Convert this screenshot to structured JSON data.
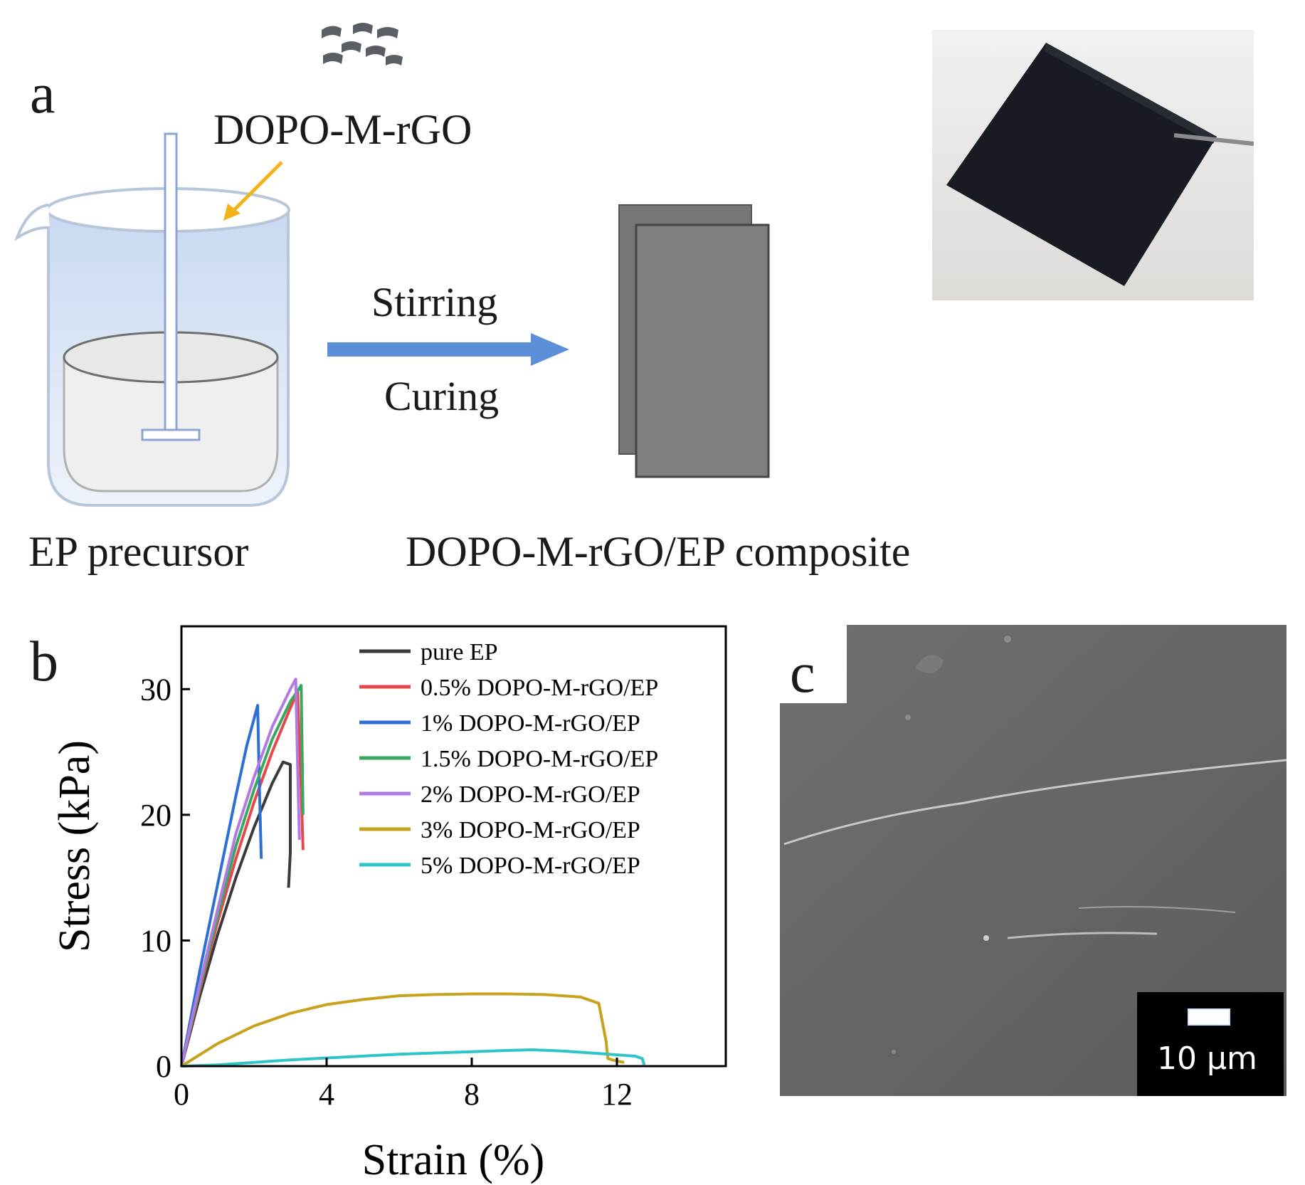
{
  "panel_a": {
    "letter": "a",
    "filler_label": "DOPO-M-rGO",
    "beaker_label": "EP precursor",
    "step_top": "Stirring",
    "step_bottom": "Curing",
    "product_label": "DOPO-M-rGO/EP composite",
    "colors": {
      "arrow": "#5b8fd8",
      "pointer": "#f2b21a",
      "sheet": "#7f7f7f",
      "beaker": "#dce7f6"
    }
  },
  "panel_b": {
    "letter": "b"
  },
  "panel_c": {
    "letter": "c",
    "scale_bar": "10 μm"
  },
  "chart_data": {
    "type": "line",
    "xlabel": "Strain (%)",
    "ylabel": "Stress (kPa)",
    "xlim": [
      0,
      15
    ],
    "ylim": [
      0,
      35
    ],
    "xticks": [
      0,
      4,
      8,
      12
    ],
    "yticks": [
      0,
      10,
      20,
      30
    ],
    "legend_position": "top-right",
    "series": [
      {
        "name": "pure EP",
        "color": "#3a3a3a",
        "x": [
          0,
          0.5,
          1.0,
          1.5,
          2.0,
          2.5,
          2.8,
          3.0,
          3.0,
          2.95
        ],
        "y": [
          0,
          5.5,
          10.5,
          15.0,
          19.0,
          22.5,
          24.2,
          24.0,
          17.0,
          14.2
        ]
      },
      {
        "name": "0.5% DOPO-M-rGO/EP",
        "color": "#e8474c",
        "x": [
          0,
          0.5,
          1.0,
          1.5,
          2.0,
          2.5,
          3.0,
          3.2,
          3.3,
          3.35
        ],
        "y": [
          0,
          6.0,
          11.5,
          16.5,
          21.0,
          25.0,
          28.5,
          29.8,
          22.0,
          17.2
        ]
      },
      {
        "name": "1% DOPO-M-rGO/EP",
        "color": "#2e6fd6",
        "x": [
          0,
          0.5,
          1.0,
          1.5,
          1.8,
          2.1,
          2.15,
          2.2
        ],
        "y": [
          0,
          7.5,
          14.5,
          21.5,
          25.5,
          28.7,
          22.0,
          16.5
        ]
      },
      {
        "name": "1.5% DOPO-M-rGO/EP",
        "color": "#3aa860",
        "x": [
          0,
          0.5,
          1.0,
          1.5,
          2.0,
          2.5,
          3.0,
          3.3,
          3.35
        ],
        "y": [
          0,
          6.2,
          12.0,
          17.5,
          22.0,
          26.0,
          29.0,
          30.3,
          20.0
        ]
      },
      {
        "name": "2% DOPO-M-rGO/EP",
        "color": "#b07ae0",
        "x": [
          0,
          0.5,
          1.0,
          1.5,
          2.0,
          2.5,
          3.0,
          3.15,
          3.2,
          3.25
        ],
        "y": [
          0,
          6.5,
          12.5,
          18.5,
          23.0,
          27.0,
          30.0,
          30.8,
          24.0,
          18.0
        ]
      },
      {
        "name": "3% DOPO-M-rGO/EP",
        "color": "#c7a21c",
        "x": [
          0,
          1,
          2,
          3,
          4,
          5,
          6,
          7,
          8,
          9,
          10,
          11,
          11.5,
          11.7,
          11.75,
          12.0,
          12.2
        ],
        "y": [
          0,
          1.8,
          3.2,
          4.2,
          4.9,
          5.3,
          5.6,
          5.7,
          5.75,
          5.75,
          5.7,
          5.5,
          5.0,
          2.0,
          0.6,
          0.4,
          0.3
        ]
      },
      {
        "name": "5% DOPO-M-rGO/EP",
        "color": "#2ec4c8",
        "x": [
          0,
          1,
          2,
          3,
          4,
          5,
          6,
          7,
          8,
          9,
          9.7,
          10.5,
          11.5,
          12.5,
          12.7,
          12.75
        ],
        "y": [
          0,
          0.1,
          0.3,
          0.5,
          0.65,
          0.8,
          0.95,
          1.05,
          1.15,
          1.25,
          1.3,
          1.2,
          1.0,
          0.8,
          0.6,
          0.1
        ]
      }
    ]
  }
}
